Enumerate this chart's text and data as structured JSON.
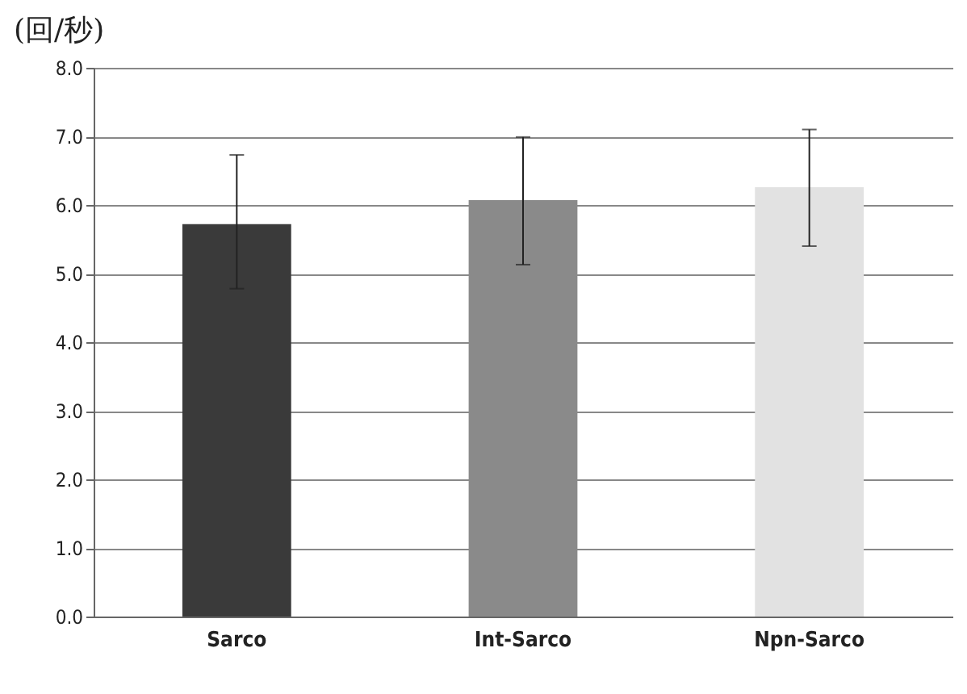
{
  "chart_data": {
    "type": "bar",
    "ylabel": "(回/秒)",
    "categories": [
      "Sarco",
      "Int-Sarco",
      "Npn-Sarco"
    ],
    "values": [
      5.72,
      6.07,
      6.26
    ],
    "colors": [
      "#3a3a3a",
      "#8a8a8a",
      "#e2e2e2"
    ],
    "errors": [
      [
        4.78,
        6.73
      ],
      [
        5.13,
        6.99
      ],
      [
        5.4,
        7.1
      ]
    ],
    "ylim": [
      0,
      8
    ],
    "yticks": [
      {
        "value": 0,
        "label": "0.0"
      },
      {
        "value": 1,
        "label": "1.0"
      },
      {
        "value": 2,
        "label": "2.0"
      },
      {
        "value": 3,
        "label": "3.0"
      },
      {
        "value": 4,
        "label": "4.0"
      },
      {
        "value": 5,
        "label": "5.0"
      },
      {
        "value": 6,
        "label": "6.0"
      },
      {
        "value": 7,
        "label": "7.0"
      },
      {
        "value": 8,
        "label": "8.0"
      }
    ],
    "grid": "y"
  }
}
